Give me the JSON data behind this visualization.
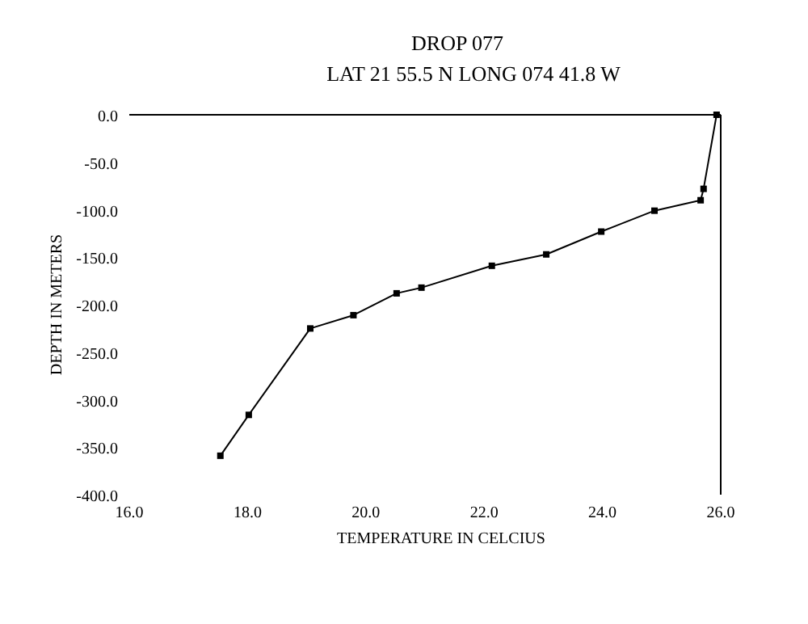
{
  "chart_data": {
    "type": "line",
    "title": "DROP 077",
    "subtitle": "LAT 21 55.5 N  LONG  074 41.8 W",
    "xlabel": "TEMPERATURE IN CELCIUS",
    "ylabel": "DEPTH IN METERS",
    "x": [
      25.93,
      25.71,
      25.66,
      24.88,
      23.98,
      23.05,
      22.13,
      20.94,
      20.52,
      19.79,
      19.06,
      18.02,
      17.54
    ],
    "series": [
      {
        "color": "#000000",
        "values": [
          0,
          -78,
          -90,
          -101,
          -123,
          -147,
          -159,
          -182,
          -188,
          -211,
          -225,
          -316,
          -359
        ]
      }
    ],
    "xlim": [
      16,
      26
    ],
    "xticks": [
      {
        "value": 16,
        "label": "16.0"
      },
      {
        "value": 18,
        "label": "18.0"
      },
      {
        "value": 20,
        "label": "20.0"
      },
      {
        "value": 22,
        "label": "22.0"
      },
      {
        "value": 24,
        "label": "24.0"
      },
      {
        "value": 26,
        "label": "26.0"
      }
    ],
    "ylim": [
      -400,
      0
    ],
    "yticks": [
      {
        "value": 0,
        "label": "0.0"
      },
      {
        "value": -50,
        "label": "-50.0"
      },
      {
        "value": -100,
        "label": "-100.0"
      },
      {
        "value": -150,
        "label": "-150.0"
      },
      {
        "value": -200,
        "label": "-200.0"
      },
      {
        "value": -250,
        "label": "-250.0"
      },
      {
        "value": -300,
        "label": "-300.0"
      },
      {
        "value": -350,
        "label": "-350.0"
      },
      {
        "value": -400,
        "label": "-400.0"
      }
    ],
    "grid": false,
    "marker": "square",
    "line_style": "solid"
  }
}
